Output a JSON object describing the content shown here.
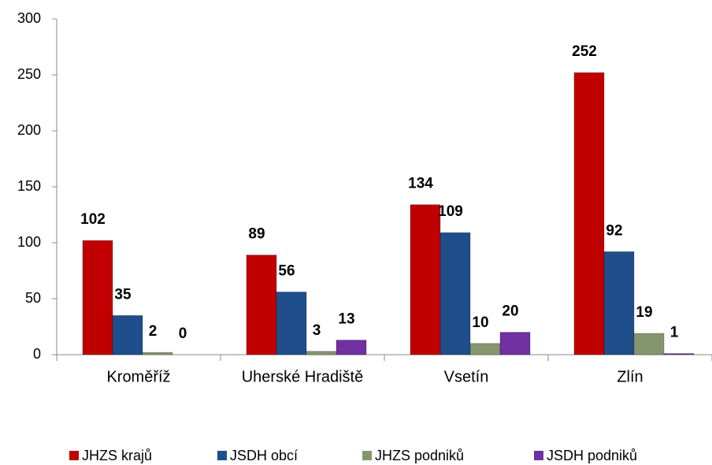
{
  "chart_data": {
    "type": "bar",
    "categories": [
      "Kroměříž",
      "Uherské Hradiště",
      "Vsetín",
      "Zlín"
    ],
    "series": [
      {
        "name": "JHZS krajů",
        "color": "#c00000",
        "values": [
          102,
          89,
          134,
          252
        ]
      },
      {
        "name": "JSDH obcí",
        "color": "#1f4e8c",
        "values": [
          35,
          56,
          109,
          92
        ]
      },
      {
        "name": "JHZS podniků",
        "color": "#85966f",
        "values": [
          2,
          3,
          10,
          19
        ]
      },
      {
        "name": "JSDH podniků",
        "color": "#7030a0",
        "values": [
          0,
          13,
          20,
          1
        ]
      }
    ],
    "ylim": [
      0,
      300
    ],
    "yticks": [
      0,
      50,
      100,
      150,
      200,
      250,
      300
    ],
    "grid": false,
    "legend": "bottom"
  }
}
